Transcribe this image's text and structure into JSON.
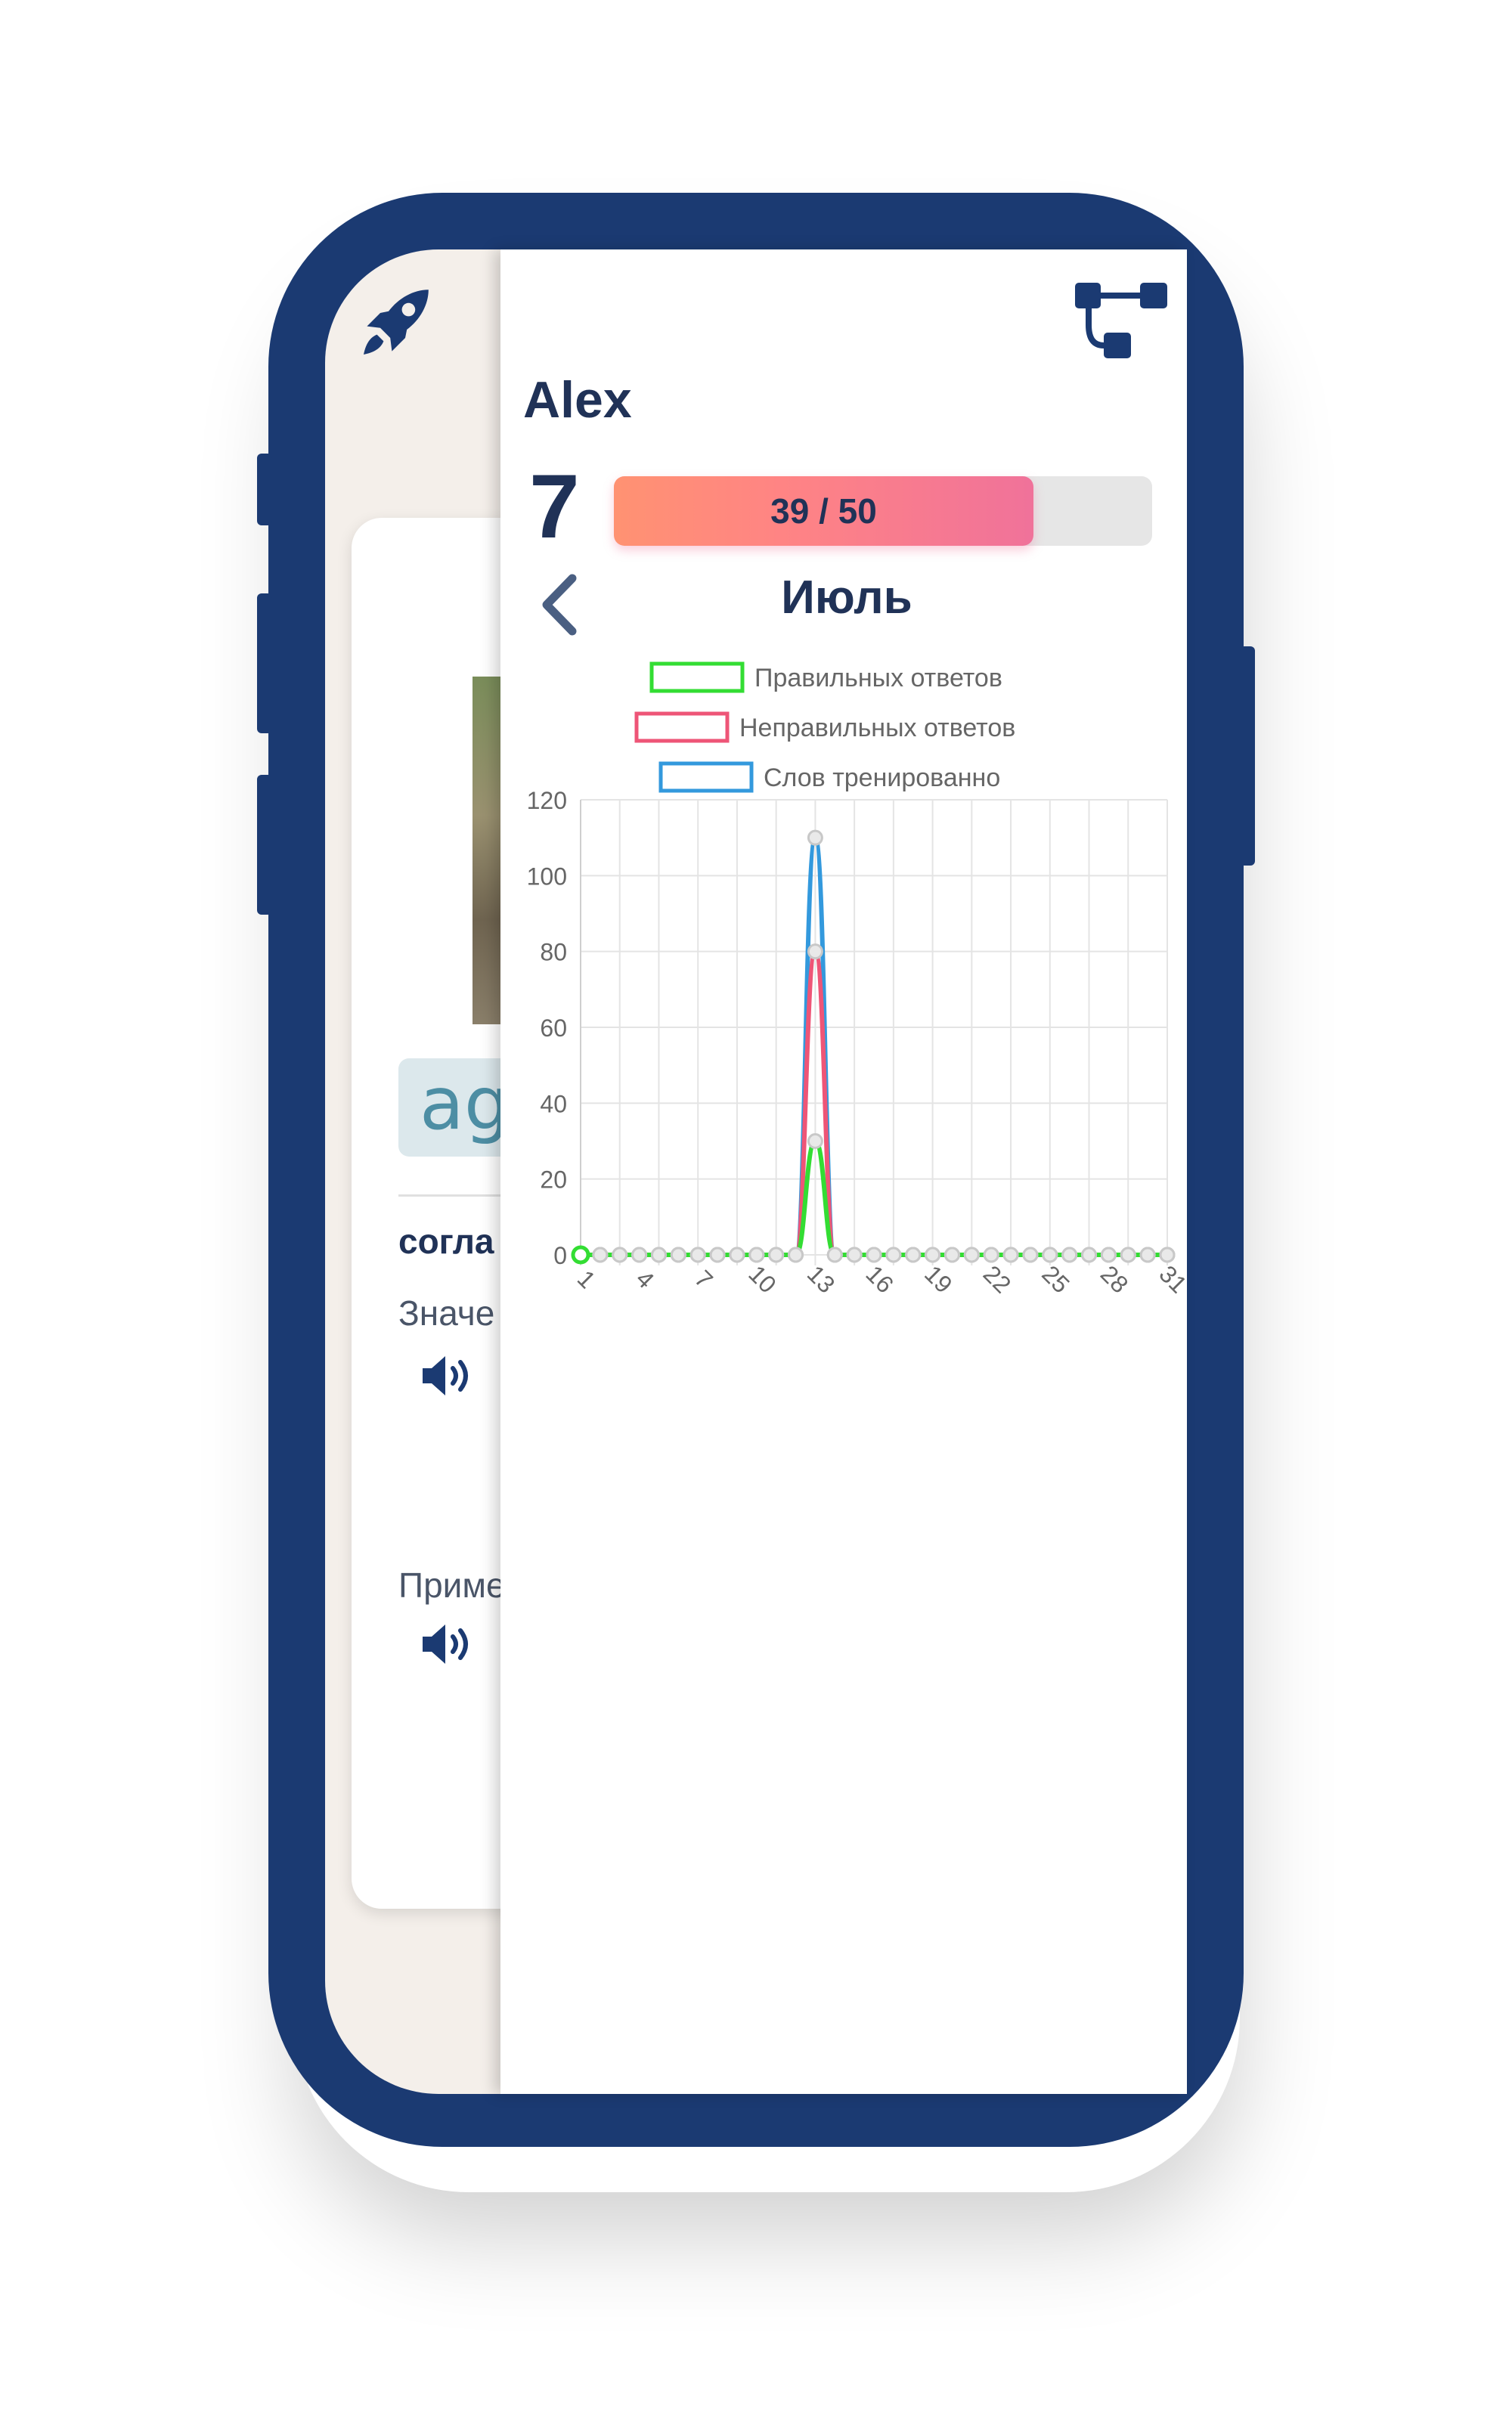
{
  "background_card": {
    "word": "ag",
    "translation": "согла",
    "meaning_label": "Значе",
    "example_label": "Приме"
  },
  "panel": {
    "user_name": "Alex",
    "level": "7",
    "progress": {
      "label": "39 / 50",
      "current": 39,
      "total": 50
    },
    "month": "Июль"
  },
  "icons": [
    "rocket-icon",
    "tree-icon",
    "back-chevron-icon",
    "speaker-icon"
  ],
  "colors": {
    "frame": "#1b3a72",
    "text_dark": "#203257",
    "correct": "#33dd33",
    "wrong": "#ee5577",
    "trained": "#3399dd"
  },
  "chart_data": {
    "type": "line",
    "legend_placement": "top",
    "grid": true,
    "ylim": [
      0,
      120
    ],
    "yticks": [
      0,
      20,
      40,
      60,
      80,
      100,
      120
    ],
    "x": [
      1,
      2,
      3,
      4,
      5,
      6,
      7,
      8,
      9,
      10,
      11,
      12,
      13,
      14,
      15,
      16,
      17,
      18,
      19,
      20,
      21,
      22,
      23,
      24,
      25,
      26,
      27,
      28,
      29,
      30,
      31
    ],
    "xtick_labels": [
      "1",
      "4",
      "7",
      "10",
      "13",
      "16",
      "19",
      "22",
      "25",
      "28",
      "31"
    ],
    "series": [
      {
        "name": "Правильных ответов",
        "color": "#33dd33",
        "values": [
          0,
          0,
          0,
          0,
          0,
          0,
          0,
          0,
          0,
          0,
          0,
          0,
          30,
          0,
          0,
          0,
          0,
          0,
          0,
          0,
          0,
          0,
          0,
          0,
          0,
          0,
          0,
          0,
          0,
          0,
          0
        ]
      },
      {
        "name": "Неправильных ответов",
        "color": "#ee5577",
        "values": [
          0,
          0,
          0,
          0,
          0,
          0,
          0,
          0,
          0,
          0,
          0,
          0,
          80,
          0,
          0,
          0,
          0,
          0,
          0,
          0,
          0,
          0,
          0,
          0,
          0,
          0,
          0,
          0,
          0,
          0,
          0
        ]
      },
      {
        "name": "Слов тренированно",
        "color": "#3399dd",
        "values": [
          0,
          0,
          0,
          0,
          0,
          0,
          0,
          0,
          0,
          0,
          0,
          0,
          110,
          0,
          0,
          0,
          0,
          0,
          0,
          0,
          0,
          0,
          0,
          0,
          0,
          0,
          0,
          0,
          0,
          0,
          0
        ]
      }
    ]
  }
}
